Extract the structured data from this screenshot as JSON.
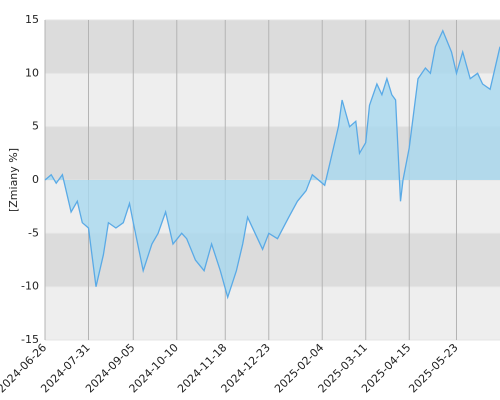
{
  "chart_data": {
    "type": "area",
    "y_label": "[Zmiany %]",
    "x": [
      "2024-06-26",
      "2024-07-01",
      "2024-07-05",
      "2024-07-10",
      "2024-07-17",
      "2024-07-22",
      "2024-07-26",
      "2024-07-31",
      "2024-08-06",
      "2024-08-12",
      "2024-08-16",
      "2024-08-22",
      "2024-08-28",
      "2024-09-02",
      "2024-09-05",
      "2024-09-13",
      "2024-09-20",
      "2024-09-25",
      "2024-10-01",
      "2024-10-07",
      "2024-10-14",
      "2024-10-18",
      "2024-10-25",
      "2024-11-01",
      "2024-11-07",
      "2024-11-14",
      "2024-11-20",
      "2024-11-27",
      "2024-12-02",
      "2024-12-06",
      "2024-12-12",
      "2024-12-18",
      "2024-12-23",
      "2024-12-30",
      "2025-01-08",
      "2025-01-15",
      "2025-01-22",
      "2025-01-27",
      "2025-02-06",
      "2025-02-12",
      "2025-02-17",
      "2025-02-20",
      "2025-02-26",
      "2025-03-03",
      "2025-03-06",
      "2025-03-11",
      "2025-03-14",
      "2025-03-20",
      "2025-03-24",
      "2025-03-28",
      "2025-04-01",
      "2025-04-04",
      "2025-04-08",
      "2025-04-10",
      "2025-04-15",
      "2025-04-22",
      "2025-04-28",
      "2025-05-02",
      "2025-05-06",
      "2025-05-12",
      "2025-05-19",
      "2025-05-23",
      "2025-05-28",
      "2025-06-03",
      "2025-06-09",
      "2025-06-13",
      "2025-06-19",
      "2025-06-27"
    ],
    "series": [
      {
        "name": "Zmiany",
        "color": "#5aaae6",
        "fill": "#a8d8ef",
        "values": [
          0,
          0.5,
          -0.3,
          0.5,
          -3,
          -2,
          -4,
          -4.5,
          -10,
          -7,
          -4,
          -4.5,
          -4,
          -2.2,
          -4,
          -8.5,
          -6,
          -5,
          -3,
          -6,
          -5,
          -5.5,
          -7.5,
          -8.5,
          -6,
          -8.5,
          -11,
          -8.5,
          -6,
          -3.5,
          -5,
          -6.5,
          -5,
          -5.5,
          -3.5,
          -2,
          -1,
          0.5,
          -0.5,
          2.5,
          5,
          7.5,
          5,
          5.5,
          2.5,
          3.5,
          7,
          9,
          8,
          9.5,
          8,
          7.5,
          -2,
          0,
          3,
          9.5,
          10.5,
          10,
          12.5,
          14,
          12,
          10,
          12,
          9.5,
          10,
          9,
          8.5,
          12.5
        ]
      }
    ],
    "xlim": [
      "2024-06-26",
      "2025-06-27"
    ],
    "xticks": [
      "2024-06-26",
      "2024-07-31",
      "2024-09-05",
      "2024-10-10",
      "2024-11-18",
      "2024-12-23",
      "2025-02-04",
      "2025-03-11",
      "2025-04-15",
      "2025-05-23"
    ],
    "ylim": [
      -15,
      15
    ],
    "yticks": [
      -15,
      -10,
      -5,
      0,
      5,
      10,
      15
    ],
    "grid": true
  }
}
